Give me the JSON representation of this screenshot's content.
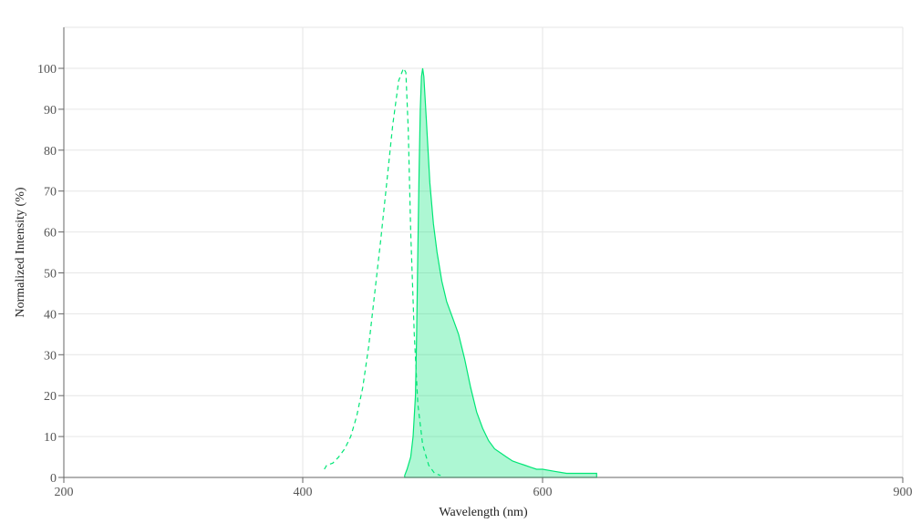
{
  "chart_data": {
    "type": "area",
    "title": "",
    "xlabel": "Wavelength (nm)",
    "ylabel": "Normalized Intensity (%)",
    "xlim": [
      200,
      900
    ],
    "ylim": [
      0,
      110
    ],
    "x_ticks": [
      200,
      400,
      600,
      900
    ],
    "y_ticks": [
      0,
      10,
      20,
      30,
      40,
      50,
      60,
      70,
      80,
      90,
      100
    ],
    "grid": true,
    "legend": "none",
    "color": "#00e676",
    "series": [
      {
        "style": "dashed-line",
        "points": [
          [
            418,
            2
          ],
          [
            420,
            3
          ],
          [
            425,
            3.5
          ],
          [
            430,
            5
          ],
          [
            435,
            7
          ],
          [
            440,
            10
          ],
          [
            445,
            15
          ],
          [
            450,
            22
          ],
          [
            455,
            32
          ],
          [
            460,
            45
          ],
          [
            465,
            58
          ],
          [
            470,
            72
          ],
          [
            475,
            86
          ],
          [
            480,
            97
          ],
          [
            484,
            100
          ],
          [
            486,
            99
          ],
          [
            488,
            85
          ],
          [
            490,
            60
          ],
          [
            493,
            35
          ],
          [
            496,
            18
          ],
          [
            500,
            8
          ],
          [
            505,
            3
          ],
          [
            510,
            1
          ],
          [
            515,
            0.5
          ]
        ]
      },
      {
        "style": "filled-area",
        "points": [
          [
            485,
            0.5
          ],
          [
            487,
            2
          ],
          [
            490,
            5
          ],
          [
            492,
            10
          ],
          [
            494,
            20
          ],
          [
            495,
            35
          ],
          [
            496,
            55
          ],
          [
            497,
            75
          ],
          [
            498,
            90
          ],
          [
            499,
            98
          ],
          [
            500,
            100
          ],
          [
            501,
            98
          ],
          [
            503,
            88
          ],
          [
            506,
            72
          ],
          [
            509,
            62
          ],
          [
            512,
            55
          ],
          [
            516,
            48
          ],
          [
            520,
            43
          ],
          [
            525,
            39
          ],
          [
            530,
            35
          ],
          [
            535,
            29
          ],
          [
            540,
            22
          ],
          [
            545,
            16
          ],
          [
            550,
            12
          ],
          [
            555,
            9
          ],
          [
            560,
            7
          ],
          [
            565,
            6
          ],
          [
            570,
            5
          ],
          [
            575,
            4
          ],
          [
            580,
            3.5
          ],
          [
            585,
            3
          ],
          [
            590,
            2.5
          ],
          [
            595,
            2
          ],
          [
            600,
            2
          ],
          [
            610,
            1.5
          ],
          [
            620,
            1
          ],
          [
            645,
            1
          ]
        ]
      }
    ]
  }
}
